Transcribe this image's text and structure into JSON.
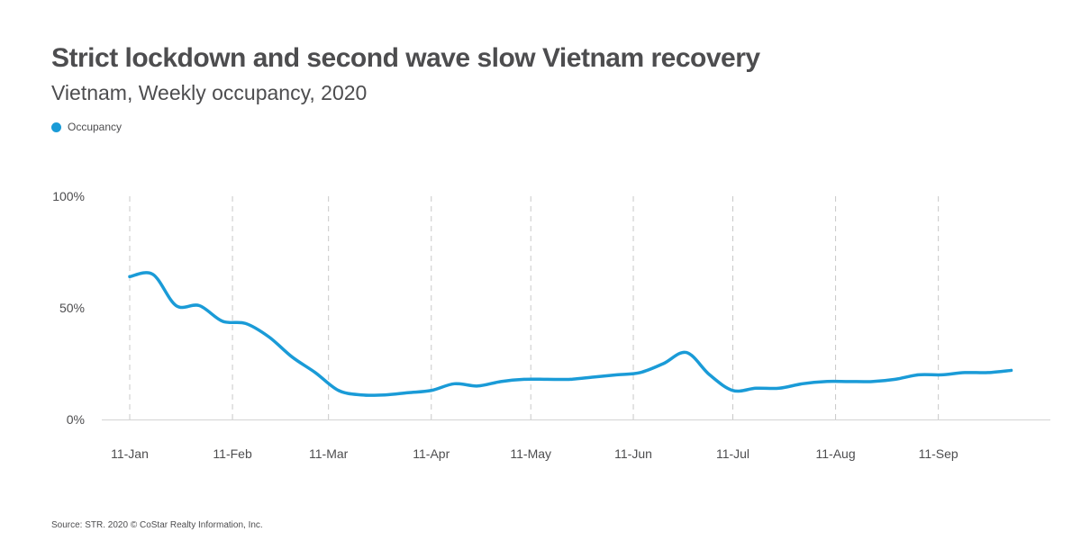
{
  "header": {
    "title": "Strict lockdown and second wave slow Vietnam recovery",
    "subtitle": "Vietnam, Weekly occupancy, 2020"
  },
  "legend": {
    "label": "Occupancy",
    "color": "#1a9bd7"
  },
  "footer": {
    "source": "Source: STR. 2020 © CoStar Realty Information, Inc."
  },
  "chart_data": {
    "type": "line",
    "title": "Strict lockdown and second wave slow Vietnam recovery",
    "subtitle": "Vietnam, Weekly occupancy, 2020",
    "xlabel": "",
    "ylabel": "",
    "ylim": [
      0,
      100
    ],
    "yticks": [
      {
        "value": 0,
        "label": "0%"
      },
      {
        "value": 50,
        "label": "50%"
      },
      {
        "value": 100,
        "label": "100%"
      }
    ],
    "xticks": [
      {
        "week": 0,
        "label": "11-Jan"
      },
      {
        "week": 4.43,
        "label": "11-Feb"
      },
      {
        "week": 8.57,
        "label": "11-Mar"
      },
      {
        "week": 13,
        "label": "11-Apr"
      },
      {
        "week": 17.29,
        "label": "11-May"
      },
      {
        "week": 21.71,
        "label": "11-Jun"
      },
      {
        "week": 26,
        "label": "11-Jul"
      },
      {
        "week": 30.43,
        "label": "11-Aug"
      },
      {
        "week": 34.86,
        "label": "11-Sep"
      }
    ],
    "grid": {
      "x": "dashed",
      "y": false
    },
    "legend_position": "top-left",
    "series": [
      {
        "name": "Occupancy",
        "color": "#1a9bd7",
        "x": [
          0,
          1,
          2,
          3,
          4,
          5,
          6,
          7,
          8,
          9,
          10,
          11,
          12,
          13,
          14,
          15,
          16,
          17,
          18,
          19,
          20,
          21,
          22,
          23,
          24,
          25,
          26,
          27,
          28,
          29,
          30,
          31,
          32,
          33,
          34,
          35,
          36,
          37,
          38
        ],
        "values": [
          64,
          65,
          51,
          51,
          44,
          43,
          37,
          28,
          21,
          13,
          11,
          11,
          12,
          13,
          16,
          15,
          17,
          18,
          18,
          18,
          19,
          20,
          21,
          25,
          30,
          20,
          13,
          14,
          14,
          16,
          17,
          17,
          17,
          18,
          20,
          20,
          21,
          21,
          22
        ]
      }
    ]
  }
}
